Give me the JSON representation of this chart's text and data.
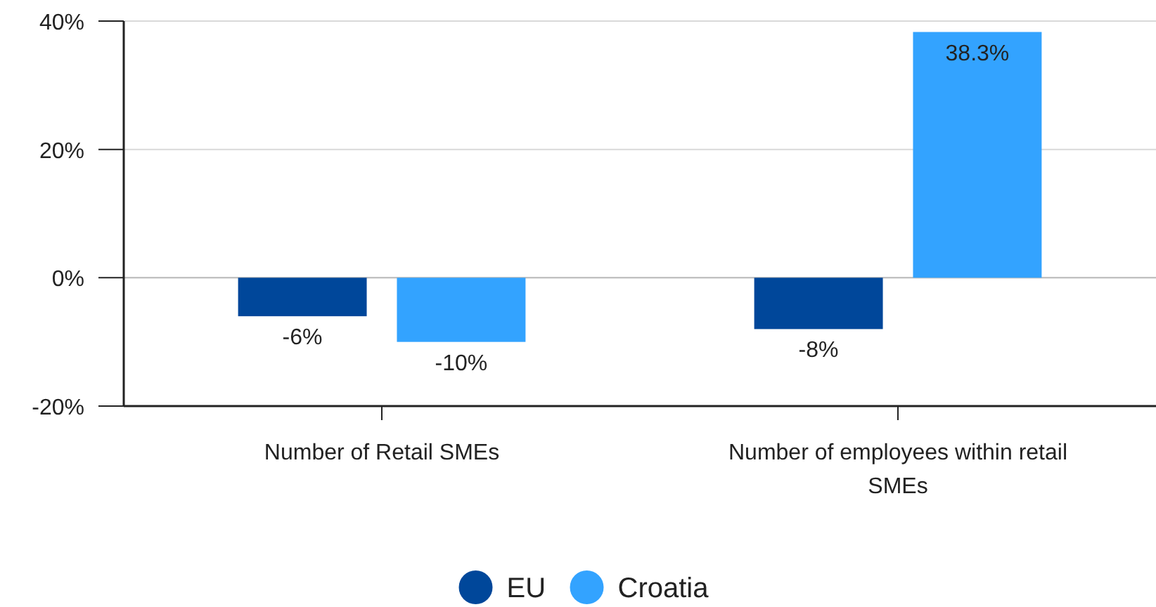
{
  "chart_data": {
    "type": "bar",
    "categories": [
      "Number of Retail SMEs",
      "Number of employees within retail SMEs"
    ],
    "series": [
      {
        "name": "EU",
        "color": "#00479a",
        "values": [
          -6,
          -8
        ],
        "value_labels": [
          "-6%",
          "-8%"
        ]
      },
      {
        "name": "Croatia",
        "color": "#33a3ff",
        "values": [
          -10,
          38.3
        ],
        "value_labels": [
          "-10%",
          "38.3%"
        ]
      }
    ],
    "ylim": [
      -20,
      40
    ],
    "yticks": [
      {
        "value": -20,
        "label": "-20%"
      },
      {
        "value": 0,
        "label": "0%"
      },
      {
        "value": 20,
        "label": "20%"
      },
      {
        "value": 40,
        "label": "40%"
      }
    ],
    "grid": "y",
    "legend": "bottom"
  }
}
